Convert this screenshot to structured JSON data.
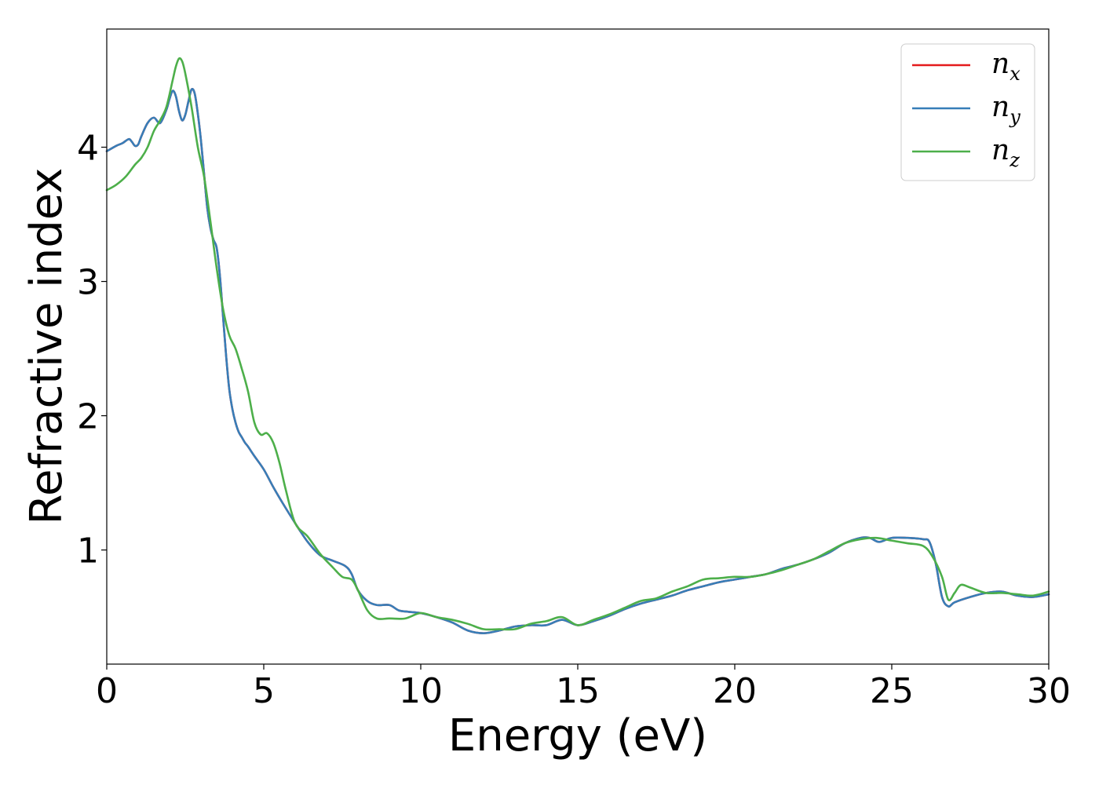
{
  "chart_data": {
    "type": "line",
    "xlabel": "Energy (eV)",
    "ylabel": "Refractive index",
    "xlim": [
      0,
      30
    ],
    "ylim": [
      0.15,
      4.88
    ],
    "x_ticks": [
      0,
      5,
      10,
      15,
      20,
      25,
      30
    ],
    "y_ticks": [
      1,
      2,
      3,
      4
    ],
    "grid": false,
    "legend_position": "top-right",
    "series": [
      {
        "name": "n",
        "subscript": "x",
        "color": "#e41a1c",
        "x": [
          0,
          0.3,
          0.5,
          0.7,
          0.8,
          0.9,
          1.0,
          1.1,
          1.3,
          1.5,
          1.7,
          1.9,
          2.0,
          2.1,
          2.2,
          2.3,
          2.4,
          2.5,
          2.6,
          2.7,
          2.8,
          2.9,
          3.0,
          3.1,
          3.2,
          3.3,
          3.4,
          3.5,
          3.6,
          3.7,
          3.8,
          3.9,
          4.0,
          4.1,
          4.2,
          4.3,
          4.4,
          4.5,
          4.7,
          5.0,
          5.3,
          5.6,
          6.0,
          6.4,
          6.8,
          7.2,
          7.6,
          7.8,
          8.0,
          8.3,
          8.6,
          9.0,
          9.3,
          9.6,
          10.0,
          10.5,
          11.0,
          11.5,
          12.0,
          12.5,
          13.0,
          13.5,
          14.0,
          14.5,
          15.0,
          15.5,
          16.0,
          16.5,
          17.0,
          17.5,
          18.0,
          18.5,
          19.0,
          19.5,
          20.0,
          20.5,
          21.0,
          21.5,
          22.0,
          22.5,
          23.0,
          23.5,
          24.0,
          24.3,
          24.6,
          25.0,
          25.5,
          26.0,
          26.2,
          26.4,
          26.6,
          26.8,
          27.0,
          27.5,
          28.0,
          28.5,
          29.0,
          29.5,
          30.0
        ],
        "y": [
          3.97,
          4.01,
          4.03,
          4.06,
          4.04,
          4.01,
          4.02,
          4.08,
          4.18,
          4.22,
          4.18,
          4.28,
          4.36,
          4.42,
          4.38,
          4.27,
          4.2,
          4.24,
          4.34,
          4.43,
          4.4,
          4.25,
          4.05,
          3.8,
          3.55,
          3.4,
          3.31,
          3.25,
          3.05,
          2.75,
          2.45,
          2.2,
          2.05,
          1.95,
          1.88,
          1.84,
          1.8,
          1.77,
          1.7,
          1.6,
          1.47,
          1.35,
          1.2,
          1.06,
          0.96,
          0.92,
          0.88,
          0.82,
          0.7,
          0.62,
          0.59,
          0.59,
          0.55,
          0.54,
          0.53,
          0.5,
          0.46,
          0.4,
          0.38,
          0.4,
          0.43,
          0.44,
          0.44,
          0.48,
          0.44,
          0.47,
          0.51,
          0.56,
          0.6,
          0.63,
          0.66,
          0.7,
          0.73,
          0.76,
          0.78,
          0.8,
          0.82,
          0.86,
          0.89,
          0.93,
          0.98,
          1.05,
          1.09,
          1.09,
          1.06,
          1.09,
          1.09,
          1.08,
          1.06,
          0.9,
          0.65,
          0.58,
          0.61,
          0.65,
          0.68,
          0.69,
          0.66,
          0.65,
          0.67
        ]
      },
      {
        "name": "n",
        "subscript": "y",
        "color": "#377eb8",
        "x": [
          0,
          0.3,
          0.5,
          0.7,
          0.8,
          0.9,
          1.0,
          1.1,
          1.3,
          1.5,
          1.7,
          1.9,
          2.0,
          2.1,
          2.2,
          2.3,
          2.4,
          2.5,
          2.6,
          2.7,
          2.8,
          2.9,
          3.0,
          3.1,
          3.2,
          3.3,
          3.4,
          3.5,
          3.6,
          3.7,
          3.8,
          3.9,
          4.0,
          4.1,
          4.2,
          4.3,
          4.4,
          4.5,
          4.7,
          5.0,
          5.3,
          5.6,
          6.0,
          6.4,
          6.8,
          7.2,
          7.6,
          7.8,
          8.0,
          8.3,
          8.6,
          9.0,
          9.3,
          9.6,
          10.0,
          10.5,
          11.0,
          11.5,
          12.0,
          12.5,
          13.0,
          13.5,
          14.0,
          14.5,
          15.0,
          15.5,
          16.0,
          16.5,
          17.0,
          17.5,
          18.0,
          18.5,
          19.0,
          19.5,
          20.0,
          20.5,
          21.0,
          21.5,
          22.0,
          22.5,
          23.0,
          23.5,
          24.0,
          24.3,
          24.6,
          25.0,
          25.5,
          26.0,
          26.2,
          26.4,
          26.6,
          26.8,
          27.0,
          27.5,
          28.0,
          28.5,
          29.0,
          29.5,
          30.0
        ],
        "y": [
          3.97,
          4.01,
          4.03,
          4.06,
          4.04,
          4.01,
          4.02,
          4.08,
          4.18,
          4.22,
          4.18,
          4.28,
          4.36,
          4.42,
          4.38,
          4.27,
          4.2,
          4.24,
          4.34,
          4.43,
          4.4,
          4.25,
          4.05,
          3.8,
          3.55,
          3.4,
          3.31,
          3.25,
          3.05,
          2.75,
          2.45,
          2.2,
          2.05,
          1.95,
          1.88,
          1.84,
          1.8,
          1.77,
          1.7,
          1.6,
          1.47,
          1.35,
          1.2,
          1.06,
          0.96,
          0.92,
          0.88,
          0.82,
          0.7,
          0.62,
          0.59,
          0.59,
          0.55,
          0.54,
          0.53,
          0.5,
          0.46,
          0.4,
          0.38,
          0.4,
          0.43,
          0.44,
          0.44,
          0.48,
          0.44,
          0.47,
          0.51,
          0.56,
          0.6,
          0.63,
          0.66,
          0.7,
          0.73,
          0.76,
          0.78,
          0.8,
          0.82,
          0.86,
          0.89,
          0.93,
          0.98,
          1.05,
          1.09,
          1.09,
          1.06,
          1.09,
          1.09,
          1.08,
          1.06,
          0.9,
          0.65,
          0.58,
          0.61,
          0.65,
          0.68,
          0.69,
          0.66,
          0.65,
          0.67
        ]
      },
      {
        "name": "n",
        "subscript": "z",
        "color": "#4daf4a",
        "x": [
          0,
          0.3,
          0.6,
          0.9,
          1.1,
          1.3,
          1.5,
          1.7,
          1.9,
          2.1,
          2.2,
          2.3,
          2.4,
          2.5,
          2.7,
          2.9,
          3.1,
          3.3,
          3.5,
          3.7,
          3.9,
          4.1,
          4.3,
          4.5,
          4.7,
          4.9,
          5.1,
          5.3,
          5.5,
          5.7,
          6.0,
          6.4,
          6.8,
          7.2,
          7.5,
          7.8,
          8.0,
          8.3,
          8.6,
          9.0,
          9.5,
          10.0,
          10.5,
          11.0,
          11.5,
          12.0,
          12.5,
          13.0,
          13.5,
          14.0,
          14.5,
          15.0,
          15.5,
          16.0,
          16.5,
          17.0,
          17.5,
          18.0,
          18.5,
          19.0,
          19.5,
          20.0,
          20.5,
          21.0,
          21.5,
          22.0,
          22.5,
          23.0,
          23.5,
          24.0,
          24.5,
          25.0,
          25.5,
          26.0,
          26.3,
          26.6,
          26.8,
          27.0,
          27.2,
          27.5,
          28.0,
          28.5,
          29.0,
          29.5,
          30.0
        ],
        "y": [
          3.68,
          3.72,
          3.78,
          3.87,
          3.92,
          4.0,
          4.12,
          4.2,
          4.3,
          4.5,
          4.6,
          4.66,
          4.64,
          4.55,
          4.3,
          4.0,
          3.78,
          3.45,
          3.1,
          2.8,
          2.6,
          2.5,
          2.35,
          2.18,
          1.95,
          1.86,
          1.87,
          1.8,
          1.65,
          1.45,
          1.2,
          1.1,
          0.97,
          0.87,
          0.8,
          0.78,
          0.7,
          0.55,
          0.49,
          0.49,
          0.49,
          0.53,
          0.5,
          0.48,
          0.45,
          0.41,
          0.41,
          0.41,
          0.45,
          0.47,
          0.5,
          0.44,
          0.48,
          0.52,
          0.57,
          0.62,
          0.64,
          0.69,
          0.73,
          0.78,
          0.79,
          0.8,
          0.8,
          0.82,
          0.85,
          0.89,
          0.93,
          0.99,
          1.05,
          1.08,
          1.09,
          1.07,
          1.05,
          1.03,
          0.95,
          0.8,
          0.63,
          0.68,
          0.74,
          0.72,
          0.68,
          0.68,
          0.67,
          0.66,
          0.69
        ]
      }
    ]
  }
}
